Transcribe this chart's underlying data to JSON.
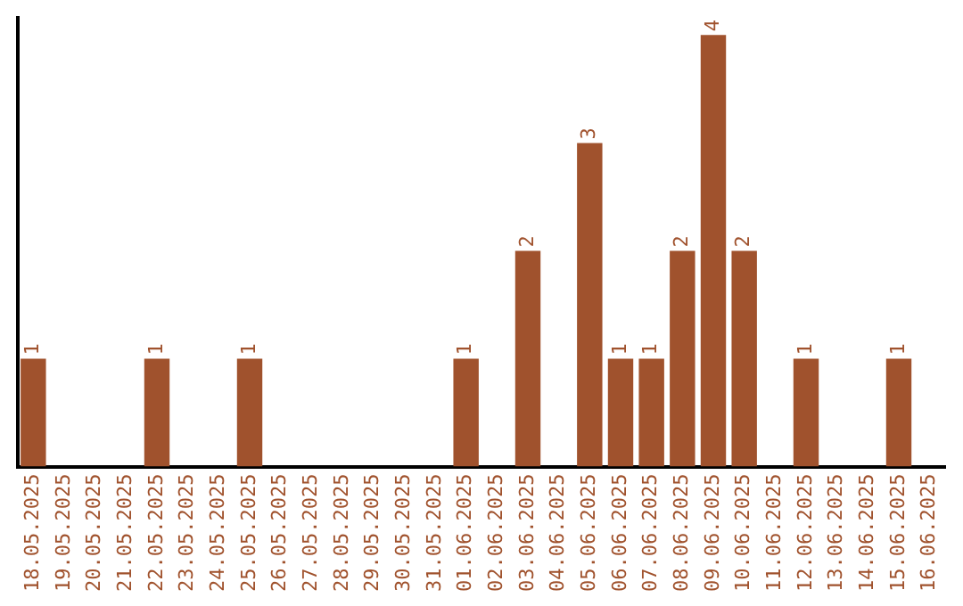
{
  "chart_data": {
    "type": "bar",
    "categories": [
      "18.05.2025",
      "19.05.2025",
      "20.05.2025",
      "21.05.2025",
      "22.05.2025",
      "23.05.2025",
      "24.05.2025",
      "25.05.2025",
      "26.05.2025",
      "27.05.2025",
      "28.05.2025",
      "29.05.2025",
      "30.05.2025",
      "31.05.2025",
      "01.06.2025",
      "02.06.2025",
      "03.06.2025",
      "04.06.2025",
      "05.06.2025",
      "06.06.2025",
      "07.06.2025",
      "08.06.2025",
      "09.06.2025",
      "10.06.2025",
      "11.06.2025",
      "12.06.2025",
      "13.06.2025",
      "14.06.2025",
      "15.06.2025",
      "16.06.2025"
    ],
    "values": [
      1,
      0,
      0,
      0,
      1,
      0,
      0,
      1,
      0,
      0,
      0,
      0,
      0,
      0,
      1,
      0,
      2,
      0,
      3,
      1,
      1,
      2,
      4,
      2,
      0,
      1,
      0,
      0,
      1,
      0
    ],
    "value_labels": [
      "1",
      null,
      null,
      null,
      "1",
      null,
      null,
      "1",
      null,
      null,
      null,
      null,
      null,
      null,
      "1",
      null,
      "2",
      null,
      "3",
      "1",
      "1",
      "2",
      "4",
      "2",
      null,
      "1",
      null,
      null,
      "1",
      null
    ],
    "color": "#a0522d",
    "ylim": [
      0,
      4.16
    ],
    "tick_labels": "x",
    "grid": false,
    "legend": false
  }
}
